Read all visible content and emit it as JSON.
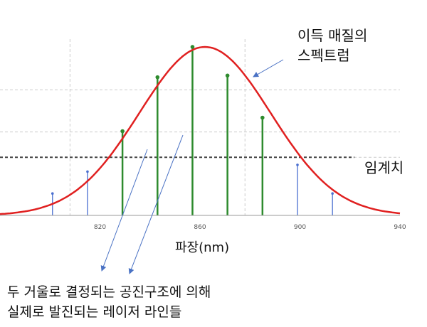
{
  "labels": {
    "spectrum_line1": "이득 매질의",
    "spectrum_line2": "스펙트럼",
    "threshold": "임계치",
    "x_axis": "파장(nm)",
    "annotation_line1": "두 거울로 결정되는 공진구조에 의해",
    "annotation_line2": "실제로 발진되는 레이저 라인들"
  },
  "chart_data": {
    "type": "line",
    "xlabel": "파장(nm)",
    "ylabel": "",
    "xlim": [
      780,
      940
    ],
    "ylim": [
      0,
      1
    ],
    "x_ticks": [
      "820",
      "860",
      "900",
      "940"
    ],
    "gain_curve": {
      "peak_x": 862,
      "fwhm": 62,
      "color": "#e02020"
    },
    "threshold_level": 0.345,
    "grid_y": [
      0.345,
      0.495,
      0.745
    ],
    "grid_x": [
      808,
      878
    ],
    "modes": [
      {
        "x": 801,
        "h": 0.13,
        "lasing": false
      },
      {
        "x": 815,
        "h": 0.26,
        "lasing": false
      },
      {
        "x": 829,
        "h": 0.5,
        "lasing": true
      },
      {
        "x": 843,
        "h": 0.82,
        "lasing": true
      },
      {
        "x": 857,
        "h": 1.0,
        "lasing": true
      },
      {
        "x": 871,
        "h": 0.83,
        "lasing": true
      },
      {
        "x": 885,
        "h": 0.58,
        "lasing": true
      },
      {
        "x": 899,
        "h": 0.3,
        "lasing": false
      },
      {
        "x": 913,
        "h": 0.13,
        "lasing": false
      }
    ],
    "colors": {
      "lasing": "#2e8b2e",
      "non_lasing": "#4a6fd0",
      "threshold": "#444444",
      "grid": "#cccccc",
      "arrow": "#4a72c4"
    }
  }
}
